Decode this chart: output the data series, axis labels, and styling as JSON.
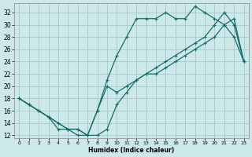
{
  "xlabel": "Humidex (Indice chaleur)",
  "bg_color": "#cce8e8",
  "grid_color": "#aacccc",
  "line_color": "#1a6b6b",
  "xlim": [
    -0.5,
    23.5
  ],
  "ylim": [
    11.5,
    33.5
  ],
  "xticks": [
    0,
    1,
    2,
    3,
    4,
    5,
    6,
    7,
    8,
    9,
    10,
    11,
    12,
    13,
    14,
    15,
    16,
    17,
    18,
    19,
    20,
    21,
    22,
    23
  ],
  "yticks": [
    12,
    14,
    16,
    18,
    20,
    22,
    24,
    26,
    28,
    30,
    32
  ],
  "line1_x": [
    0,
    1,
    2,
    3,
    4,
    5,
    6,
    7,
    8,
    9,
    10,
    11,
    12,
    13,
    14,
    15,
    16,
    17,
    18,
    19,
    20,
    21,
    22,
    23
  ],
  "line1_y": [
    18,
    17,
    16,
    15,
    13,
    13,
    12,
    12,
    16,
    21,
    25,
    28,
    31,
    31,
    31,
    32,
    31,
    31,
    33,
    32,
    31,
    30,
    28,
    24
  ],
  "line2_x": [
    0,
    1,
    2,
    3,
    4,
    5,
    6,
    7,
    8,
    9,
    10,
    11,
    12,
    13,
    14,
    15,
    16,
    17,
    18,
    19,
    20,
    21,
    22,
    23
  ],
  "line2_y": [
    18,
    17,
    16,
    15,
    14,
    13,
    13,
    12,
    12,
    13,
    17,
    19,
    21,
    22,
    23,
    24,
    25,
    26,
    27,
    28,
    30,
    32,
    30,
    24
  ],
  "line3_x": [
    0,
    1,
    2,
    3,
    4,
    5,
    6,
    7,
    8,
    9,
    10,
    11,
    12,
    13,
    14,
    15,
    16,
    17,
    18,
    19,
    20,
    21,
    22,
    23
  ],
  "line3_y": [
    18,
    17,
    16,
    15,
    14,
    13,
    13,
    12,
    16,
    20,
    19,
    20,
    21,
    22,
    22,
    23,
    24,
    25,
    26,
    27,
    28,
    30,
    31,
    24
  ]
}
